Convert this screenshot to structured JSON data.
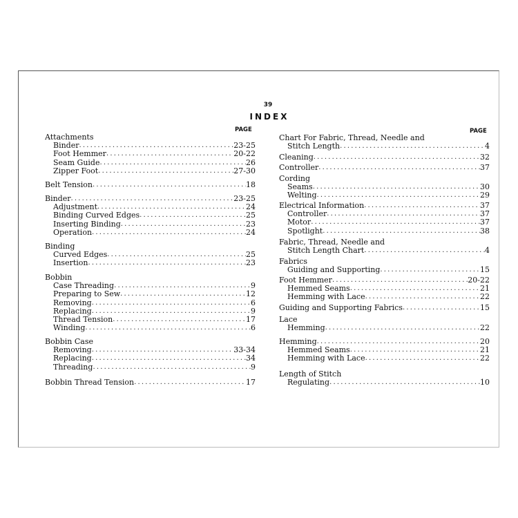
{
  "page_number": "39",
  "title": "INDEX",
  "page_header": "PAGE",
  "left_column": [
    {
      "heading": "Attachments",
      "page": "",
      "items": [
        {
          "label": "Binder",
          "page": "23-25"
        },
        {
          "label": "Foot Hemmer",
          "page": "20-22"
        },
        {
          "label": "Seam Guide",
          "page": "26"
        },
        {
          "label": "Zipper Foot",
          "page": "27-30"
        }
      ]
    },
    {
      "heading": "Belt Tension",
      "page": "18",
      "items": []
    },
    {
      "heading": "Binder",
      "page": "23-25",
      "items": [
        {
          "label": "Adjustment",
          "page": "24"
        },
        {
          "label": "Binding Curved Edges",
          "page": "25"
        },
        {
          "label": "Inserting Binding",
          "page": "23"
        },
        {
          "label": "Operation",
          "page": "24"
        }
      ]
    },
    {
      "heading": "Binding",
      "page": "",
      "items": [
        {
          "label": "Curved Edges",
          "page": "25"
        },
        {
          "label": "Insertion",
          "page": "23"
        }
      ]
    },
    {
      "heading": "Bobbin",
      "page": "",
      "items": [
        {
          "label": "Case Threading",
          "page": "9"
        },
        {
          "label": "Preparing to Sew",
          "page": "12"
        },
        {
          "label": "Removing",
          "page": "6"
        },
        {
          "label": "Replacing",
          "page": "9"
        },
        {
          "label": "Thread Tension",
          "page": "17"
        },
        {
          "label": "Winding",
          "page": "6"
        }
      ]
    },
    {
      "heading": "Bobbin Case",
      "page": "",
      "items": [
        {
          "label": "Removing",
          "page": "33-34"
        },
        {
          "label": "Replacing",
          "page": "34"
        },
        {
          "label": "Threading",
          "page": "9"
        }
      ]
    },
    {
      "heading": "Bobbin Thread Tension",
      "page": "17",
      "items": []
    }
  ],
  "right_column": [
    {
      "heading": "Chart For Fabric, Thread, Needle and",
      "page": "",
      "items": [
        {
          "label": "Stitch Length",
          "page": "4"
        }
      ]
    },
    {
      "heading": "Cleaning",
      "page": "32",
      "items": []
    },
    {
      "heading": "Controller",
      "page": "37",
      "items": []
    },
    {
      "heading": "Cording",
      "page": "",
      "items": [
        {
          "label": "Seams",
          "page": "30"
        },
        {
          "label": "Welting",
          "page": "29"
        }
      ]
    },
    {
      "heading": "Electrical Information",
      "page": "37",
      "items": [
        {
          "label": "Controller",
          "page": "37"
        },
        {
          "label": "Motor",
          "page": "37"
        },
        {
          "label": "Spotlight",
          "page": "38"
        }
      ]
    },
    {
      "heading": "Fabric, Thread, Needle and",
      "page": "",
      "items": [
        {
          "label": "Stitch Length Chart",
          "page": "4"
        }
      ]
    },
    {
      "heading": "Fabrics",
      "page": "",
      "items": [
        {
          "label": "Guiding and Supporting",
          "page": "15"
        }
      ]
    },
    {
      "heading": "Foot Hemmer",
      "page": "20-22",
      "items": [
        {
          "label": "Hemmed Seams",
          "page": "21"
        },
        {
          "label": "Hemming with Lace",
          "page": "22"
        }
      ]
    },
    {
      "heading": "Guiding and Supporting Fabrics",
      "page": "15",
      "items": []
    },
    {
      "heading": "Lace",
      "page": "",
      "items": [
        {
          "label": "Hemming",
          "page": "22"
        }
      ]
    },
    {
      "heading": "Hemming",
      "page": "20",
      "items": [
        {
          "label": "Hemmed Seams",
          "page": "21"
        },
        {
          "label": "Hemming with Lace",
          "page": "22"
        }
      ]
    },
    {
      "heading": "Length of Stitch",
      "page": "",
      "items": [
        {
          "label": "Regulating",
          "page": "10"
        }
      ]
    }
  ]
}
